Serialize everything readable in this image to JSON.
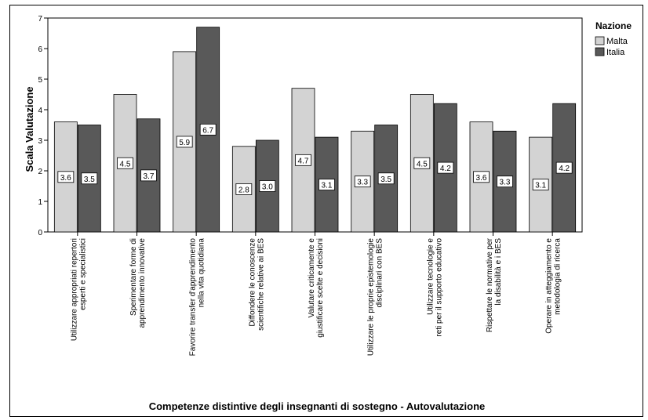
{
  "chart_data": {
    "type": "bar",
    "xlabel": "Competenze distintive degli insegnanti di sostegno - Autovalutazione",
    "ylabel": "Scala Valutazione",
    "ylim": [
      0,
      7
    ],
    "yticks": [
      0,
      1,
      2,
      3,
      4,
      5,
      6,
      7
    ],
    "grid": false,
    "legend": {
      "title": "Nazione",
      "placement": "top-right"
    },
    "categories": [
      [
        "Utilizzare appropriati repertori",
        "esperti e specialistici"
      ],
      [
        "Sperimentare forme di",
        "apprendimento innovative"
      ],
      [
        "Favorire transfer d'apprendimento",
        "nella vita quotidiana"
      ],
      [
        "Diffondere le conoscenze",
        "scientifiche relative ai BES"
      ],
      [
        "Valutare criticamente e",
        "giustificare scelte e decisioni"
      ],
      [
        "Utilizzare le proprie epistemologie",
        "disciplinari con BES"
      ],
      [
        "Utilizzare tecnologie e",
        "reti per il supporto educativo"
      ],
      [
        "Rispettare le normative per",
        "la disabilità e i BES"
      ],
      [
        "Operare in atteggiamento e",
        "metodologia di ricerca"
      ]
    ],
    "series": [
      {
        "name": "Malta",
        "color": "#d3d3d3",
        "values": [
          3.6,
          4.5,
          5.9,
          2.8,
          4.7,
          3.3,
          4.5,
          3.6,
          3.1
        ],
        "labels": [
          "3.6",
          "4.5",
          "5.9",
          "2.8",
          "4.7",
          "3.3",
          "4.5",
          "3.6",
          "3.1"
        ]
      },
      {
        "name": "Italia",
        "color": "#595959",
        "values": [
          3.5,
          3.7,
          6.7,
          3.0,
          3.1,
          3.5,
          4.2,
          3.3,
          4.2
        ],
        "labels": [
          "3.5",
          "3.7",
          "6.7",
          "3.0",
          "3.1",
          "3.5",
          "4.2",
          "3.3",
          "4.2"
        ]
      }
    ]
  }
}
